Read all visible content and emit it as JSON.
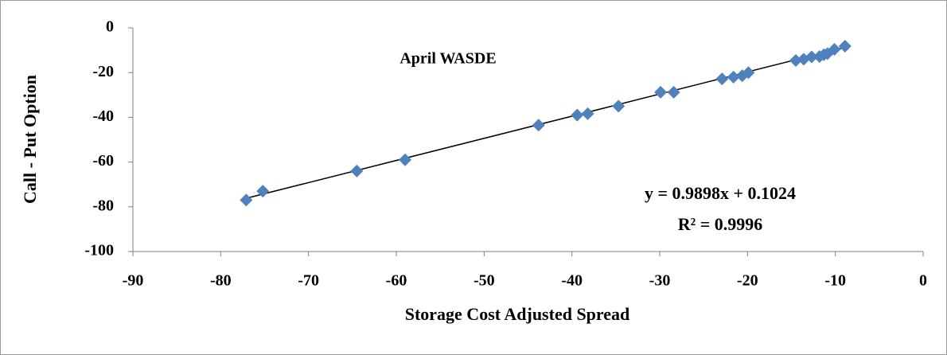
{
  "chart_data": {
    "type": "scatter",
    "title": "April  WASDE",
    "xlabel": "Storage Cost Adjusted Spread",
    "ylabel": "Call - Put Option",
    "series": [
      {
        "color": "#4f81bd",
        "x": [
          -77.1,
          -75.2,
          -64.5,
          -59,
          -43.8,
          -39.4,
          -38.2,
          -34.7,
          -29.9,
          -28.4,
          -22.9,
          -21.6,
          -20.6,
          -19.9,
          -14.5,
          -13.6,
          -12.7,
          -11.8,
          -11.3,
          -10.9,
          -10.1,
          -8.9
        ],
        "values": [
          -77,
          -73,
          -64,
          -59,
          -43.5,
          -39,
          -38.4,
          -35,
          -28.8,
          -28.8,
          -22.8,
          -22,
          -21.4,
          -20,
          -14.6,
          -14,
          -13,
          -12.8,
          -12,
          -11.5,
          -9.6,
          -8.2
        ]
      }
    ],
    "trendline": {
      "slope": 0.9898,
      "intercept": 0.1024,
      "label": "y = 0.9898x + 0.1024",
      "r2_label": "R² = 0.9996",
      "color": "#000000"
    },
    "xlim": [
      -90,
      0
    ],
    "xticks": [
      -90,
      -80,
      -70,
      -60,
      -50,
      -40,
      -30,
      -20,
      -10,
      0
    ],
    "ylim": [
      -100,
      0
    ],
    "yticks": [
      -100,
      -80,
      -60,
      -40,
      -20,
      0
    ],
    "grid": false
  }
}
